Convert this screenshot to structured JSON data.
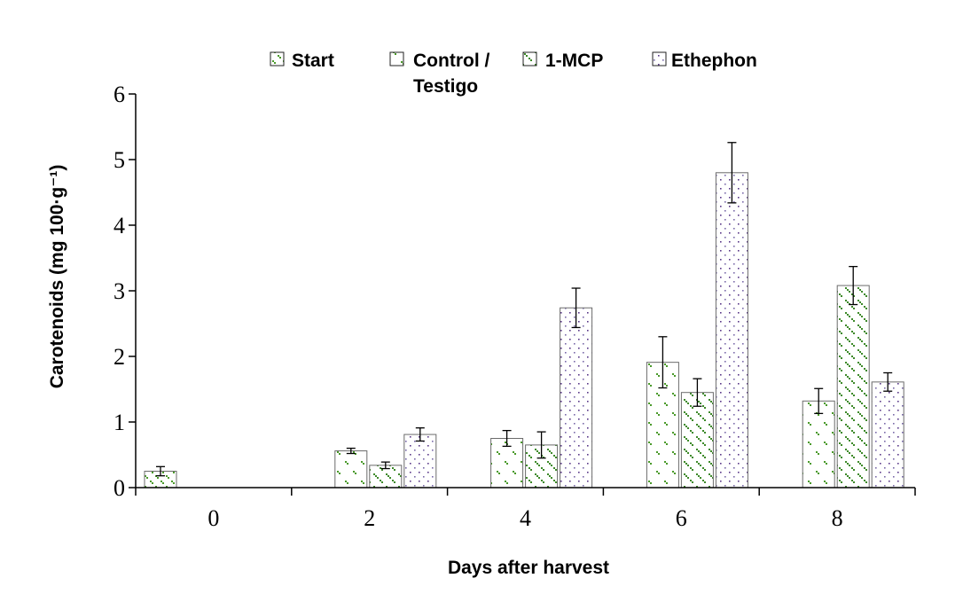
{
  "chart_data": {
    "type": "bar",
    "title": "",
    "xlabel": "Days after harvest",
    "ylabel": "Carotenoids (mg 100·g⁻¹)",
    "ylim": [
      0,
      6
    ],
    "yticks": [
      "0",
      "1",
      "2",
      "3",
      "4",
      "5",
      "6"
    ],
    "categories": [
      "0",
      "2",
      "4",
      "6",
      "8"
    ],
    "legend_position": "top",
    "series": [
      {
        "name": "Start",
        "values": [
          0.25,
          null,
          null,
          null,
          null
        ],
        "errors": [
          0.07,
          null,
          null,
          null,
          null
        ],
        "color": "#4a9a2a"
      },
      {
        "name": "Control / Testigo",
        "legend_lines": [
          "Control /",
          "Testigo"
        ],
        "values": [
          null,
          0.56,
          0.75,
          1.91,
          1.32
        ],
        "errors": [
          null,
          0.04,
          0.12,
          0.39,
          0.19
        ],
        "color": "#4a9a2a"
      },
      {
        "name": "1-MCP",
        "values": [
          null,
          0.34,
          0.65,
          1.45,
          3.08
        ],
        "errors": [
          null,
          0.05,
          0.2,
          0.21,
          0.29
        ],
        "color": "#3e8a2a"
      },
      {
        "name": "Ethephon",
        "values": [
          null,
          0.81,
          2.74,
          4.8,
          1.61
        ],
        "errors": [
          null,
          0.1,
          0.3,
          0.46,
          0.14
        ],
        "color": "#6a4a9a"
      }
    ]
  }
}
